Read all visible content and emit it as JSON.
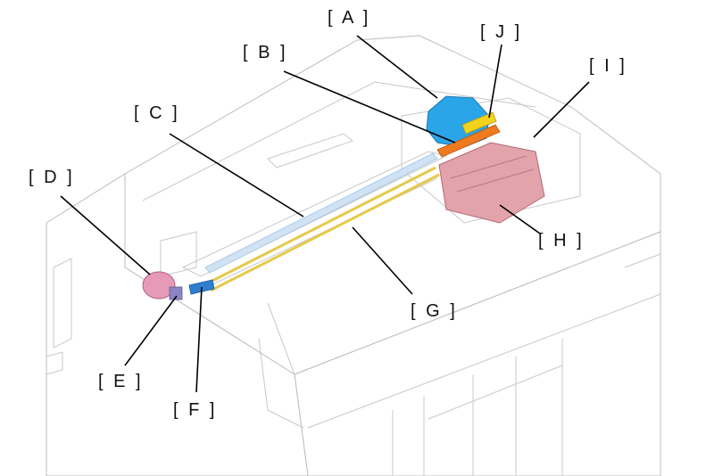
{
  "labels": {
    "A": "[ A ]",
    "B": "[ B ]",
    "C": "[ C ]",
    "D": "[ D ]",
    "E": "[ E ]",
    "F": "[ F ]",
    "G": "[ G ]",
    "H": "[ H ]",
    "I": "[ I ]",
    "J": "[ J ]"
  },
  "colors": {
    "part_A": "#2aa5e8",
    "part_B": "#f07a1e",
    "part_C": "#cfe3f5",
    "part_D": "#e79ab8",
    "part_E": "#8a86c6",
    "part_F": "#2f7fd0",
    "part_G": "#e6c94a",
    "part_H": "#d98f9a",
    "part_J": "#f2d21a",
    "machine_outline": "#c8c8c8",
    "leader_line": "#000000"
  }
}
